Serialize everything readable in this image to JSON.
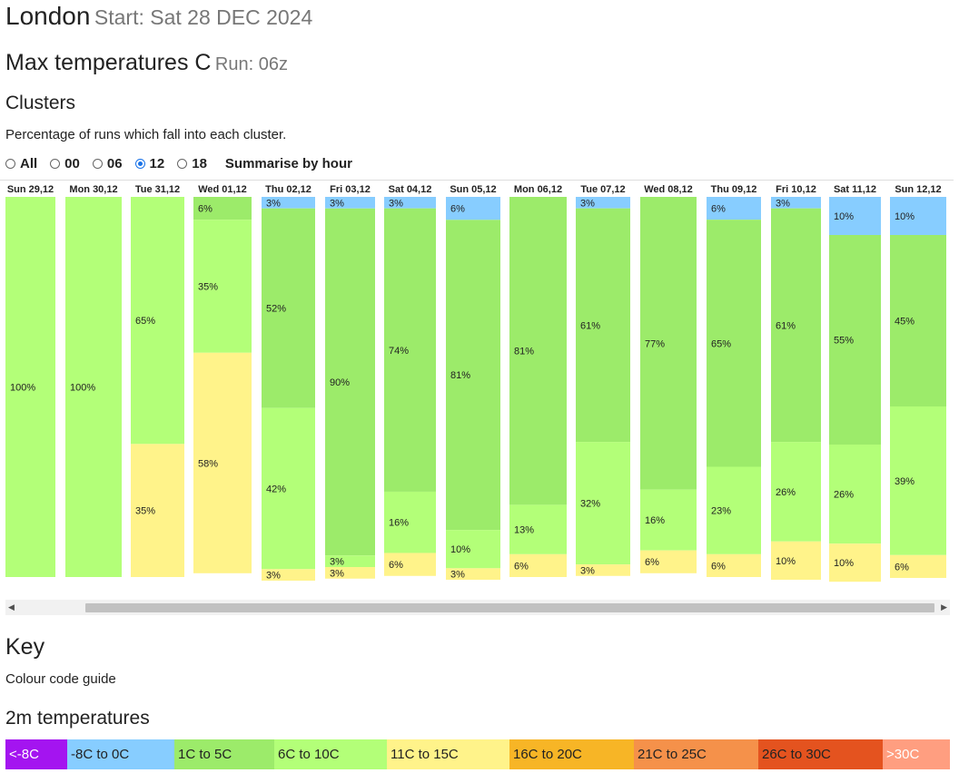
{
  "header": {
    "city": "London",
    "start_text": "Start: Sat 28 DEC 2024",
    "title_main": "Max temperatures C",
    "title_run": "Run: 06z",
    "clusters_heading": "Clusters",
    "clusters_desc": "Percentage of runs which fall into each cluster."
  },
  "run_selector": {
    "options": [
      {
        "label": "All",
        "selected": false
      },
      {
        "label": "00",
        "selected": false
      },
      {
        "label": "06",
        "selected": false
      },
      {
        "label": "12",
        "selected": true
      },
      {
        "label": "18",
        "selected": false
      }
    ],
    "summarise_label": "Summarise by hour"
  },
  "key": {
    "heading": "Key",
    "subtitle": "Colour code guide",
    "temps_heading": "2m temperatures",
    "bands": [
      {
        "label": "<-8C",
        "color": "#a414f0",
        "text_color": "#ffffff"
      },
      {
        "label": "-8C to 0C",
        "color": "#87cdff",
        "text_color": "#222222"
      },
      {
        "label": "1C to 5C",
        "color": "#9ceb6a",
        "text_color": "#222222"
      },
      {
        "label": "6C to 10C",
        "color": "#b3ff78",
        "text_color": "#222222"
      },
      {
        "label": "11C to 15C",
        "color": "#fff38a",
        "text_color": "#222222"
      },
      {
        "label": "16C to 20C",
        "color": "#f7b526",
        "text_color": "#222222"
      },
      {
        "label": "21C to 25C",
        "color": "#f5914a",
        "text_color": "#222222"
      },
      {
        "label": "26C to 30C",
        "color": "#e4531f",
        "text_color": "#222222"
      },
      {
        "label": ">30C",
        "color": "#ff9e80",
        "text_color": "#ffffff"
      }
    ]
  },
  "chart_data": {
    "type": "bar",
    "stacked": true,
    "unit": "%",
    "categories": [
      "Sun 29,12",
      "Mon 30,12",
      "Tue 31,12",
      "Wed 01,12",
      "Thu 02,12",
      "Fri 03,12",
      "Sat 04,12",
      "Sun 05,12",
      "Mon 06,12",
      "Tue 07,12",
      "Wed 08,12",
      "Thu 09,12",
      "Fri 10,12",
      "Sat 11,12",
      "Sun 12,12"
    ],
    "series": [
      {
        "name": "-8C to 0C",
        "color": "#87cdff",
        "values": [
          0,
          0,
          0,
          0,
          3,
          3,
          3,
          6,
          0,
          3,
          0,
          6,
          3,
          10,
          10
        ]
      },
      {
        "name": "1C to 5C",
        "color": "#9ceb6a",
        "values": [
          0,
          0,
          0,
          6,
          52,
          90,
          74,
          81,
          81,
          61,
          77,
          65,
          61,
          55,
          45
        ]
      },
      {
        "name": "6C to 10C",
        "color": "#b3ff78",
        "values": [
          100,
          100,
          65,
          35,
          42,
          3,
          16,
          10,
          13,
          32,
          16,
          23,
          26,
          26,
          39
        ]
      },
      {
        "name": "11C to 15C",
        "color": "#fff38a",
        "values": [
          0,
          0,
          35,
          58,
          3,
          3,
          6,
          3,
          6,
          3,
          6,
          6,
          10,
          10,
          6
        ]
      }
    ]
  }
}
